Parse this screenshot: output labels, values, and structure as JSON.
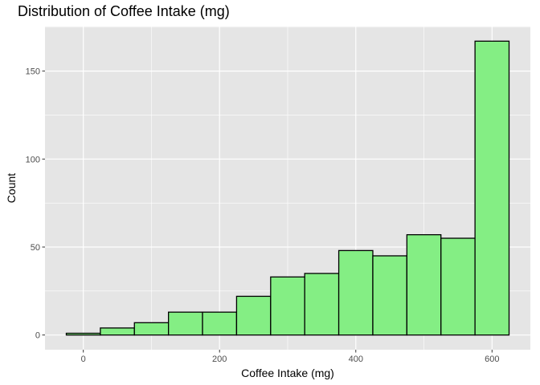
{
  "chart_data": {
    "type": "bar",
    "title": "Distribution of Coffee Intake (mg)",
    "xlabel": "Coffee Intake (mg)",
    "ylabel": "Count",
    "bin_width": 50,
    "bins": [
      {
        "start": -25,
        "end": 25,
        "count": 1
      },
      {
        "start": 25,
        "end": 75,
        "count": 4
      },
      {
        "start": 75,
        "end": 125,
        "count": 7
      },
      {
        "start": 125,
        "end": 175,
        "count": 13
      },
      {
        "start": 175,
        "end": 225,
        "count": 13
      },
      {
        "start": 225,
        "end": 275,
        "count": 22
      },
      {
        "start": 275,
        "end": 325,
        "count": 33
      },
      {
        "start": 325,
        "end": 375,
        "count": 35
      },
      {
        "start": 375,
        "end": 425,
        "count": 48
      },
      {
        "start": 425,
        "end": 475,
        "count": 45
      },
      {
        "start": 475,
        "end": 525,
        "count": 57
      },
      {
        "start": 525,
        "end": 575,
        "count": 55
      },
      {
        "start": 575,
        "end": 625,
        "count": 167
      }
    ],
    "xlim": [
      -56.25,
      656.25
    ],
    "ylim": [
      -8.35,
      175.35
    ],
    "x_ticks": [
      0,
      200,
      400,
      600
    ],
    "y_ticks": [
      0,
      50,
      100,
      150
    ],
    "grid": true,
    "colors": {
      "panel": "#e5e5e5",
      "grid": "#ffffff",
      "bar_fill": "#84ee84",
      "bar_stroke": "#000000",
      "tick_text": "#4d4d4d"
    }
  }
}
